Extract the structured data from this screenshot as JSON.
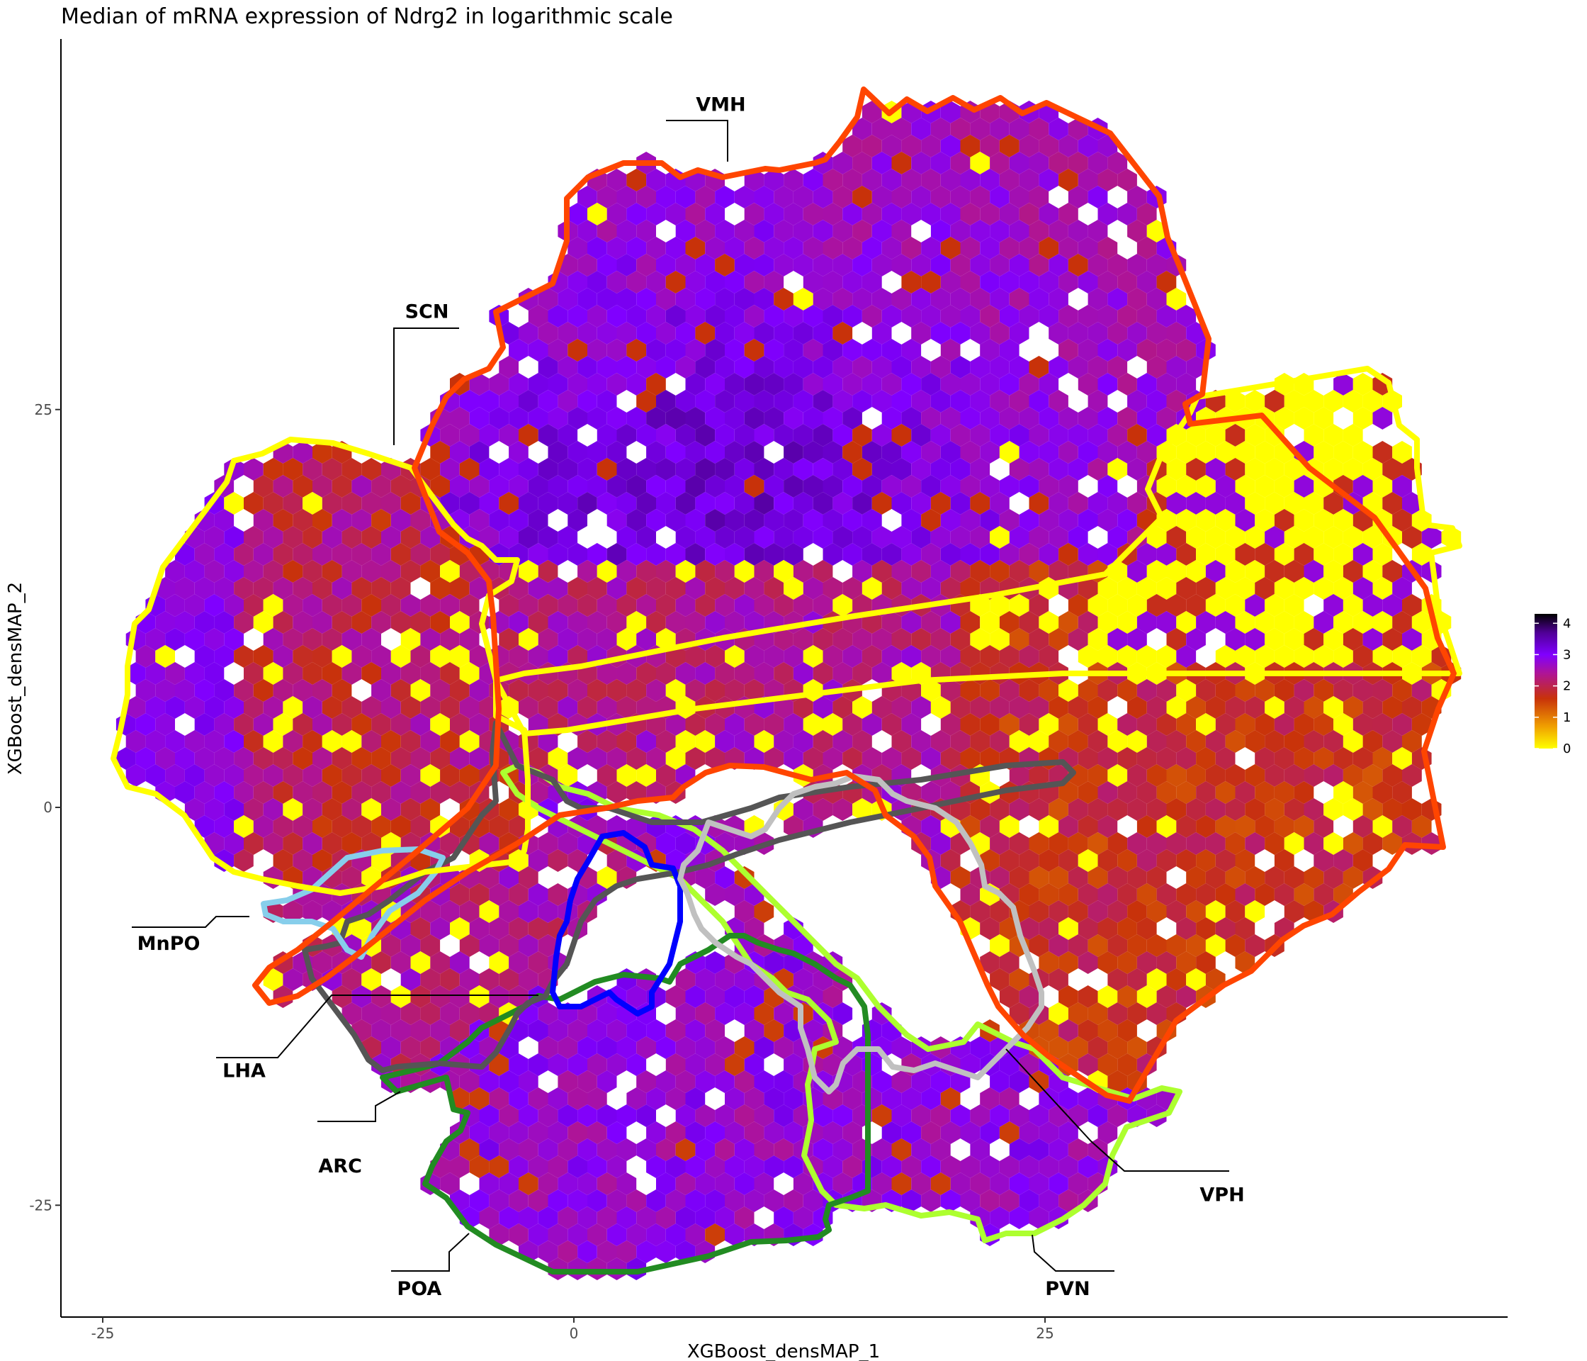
{
  "chart_data": {
    "type": "heatmap",
    "subtype": "hexbin",
    "title": "Median of mRNA expression of Ndrg2 in logarithmic scale",
    "xlabel": "XGBoost_densMAP_1",
    "ylabel": "XGBoost_densMAP_2",
    "xlim": [
      -27,
      50
    ],
    "ylim": [
      -32,
      49
    ],
    "x_ticks": [
      -25,
      0,
      25
    ],
    "y_ticks": [
      -25,
      0,
      25
    ],
    "x_tick_labels": [
      "-25",
      "0",
      "25"
    ],
    "y_tick_labels": [
      "-25",
      "0",
      "25"
    ],
    "grid": false,
    "legend": {
      "placement": "right",
      "type": "colorbar",
      "min": 0,
      "max": 4.3,
      "ticks": [
        0,
        1,
        2,
        3,
        4
      ],
      "tick_labels": [
        "0",
        "1",
        "2",
        "3",
        "4"
      ],
      "colors": [
        "#ffff00",
        "#f0a000",
        "#c8320a",
        "#a010d0",
        "#8000ff",
        "#3a0070",
        "#000000"
      ]
    },
    "regions": [
      {
        "name": "VMH",
        "label": "VMH",
        "color": "#ff4500",
        "label_x": 7.8,
        "label_y": 44.2
      },
      {
        "name": "SCN",
        "label": "SCN",
        "color": "#ffff00",
        "label_x": -7.8,
        "label_y": 31.2
      },
      {
        "name": "MnPO",
        "label": "MnPO",
        "color": "#87ceeb",
        "label_x": -21.5,
        "label_y": -8.5
      },
      {
        "name": "LHA",
        "label": "LHA",
        "color": "#555555",
        "label_x": -17.5,
        "label_y": -16.5
      },
      {
        "name": "ARC",
        "label": "ARC",
        "color": "#0000ff",
        "label_x": -12.4,
        "label_y": -22.5
      },
      {
        "name": "POA",
        "label": "POA",
        "color": "#228b22",
        "label_x": -8.2,
        "label_y": -30.2
      },
      {
        "name": "PVN",
        "label": "PVN",
        "color": "#adff2f",
        "label_x": 26.2,
        "label_y": -30.2
      },
      {
        "name": "VPH",
        "label": "VPH",
        "color": "#c0c0c0",
        "label_x": 34.4,
        "label_y": -24.3
      }
    ],
    "region_fill_summary": {
      "VMH": "mostly 2.5-3.5 (purple), darkest near center",
      "SCN": "mostly 1.5-3 (red/purple) with yellow patches",
      "VPH": "many 0 values (yellow) at the right side, red elsewhere",
      "POA": "mostly 2.5-3 (purple)",
      "PVN": "mostly 2.5-3 (purple)"
    }
  }
}
